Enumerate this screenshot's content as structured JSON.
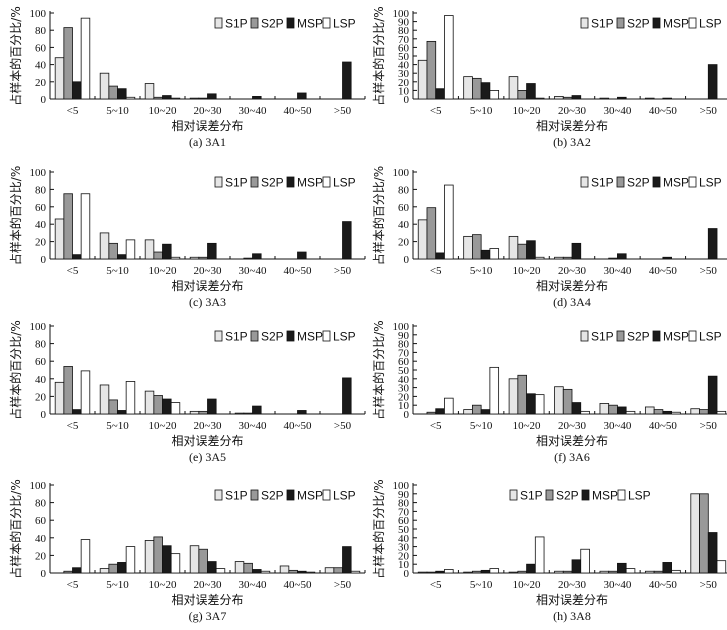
{
  "chart_data": [
    {
      "type": "bar",
      "caption": "(a) 3A1",
      "ylabel": "占样本的百分比/%",
      "xlabel": "相对误差分布",
      "categories": [
        "<5",
        "5~10",
        "10~20",
        "20~30",
        "30~40",
        "40~50",
        ">50"
      ],
      "yticks": [
        0,
        20,
        40,
        60,
        80,
        100
      ],
      "ylim": [
        0,
        100
      ],
      "legend_position": "top-right",
      "series": [
        {
          "name": "S1P",
          "color": "#e6e6e6",
          "values": [
            48,
            30,
            18,
            1,
            0,
            0,
            0
          ]
        },
        {
          "name": "S2P",
          "color": "#999999",
          "values": [
            83,
            15,
            2,
            1,
            0,
            0,
            0
          ]
        },
        {
          "name": "MSP",
          "color": "#1a1a1a",
          "values": [
            20,
            12,
            4,
            6,
            3,
            7,
            43
          ]
        },
        {
          "name": "LSP",
          "color": "#ffffff",
          "values": [
            94,
            2,
            1,
            0,
            0,
            0,
            0
          ]
        }
      ]
    },
    {
      "type": "bar",
      "caption": "(b) 3A2",
      "ylabel": "占样本的百分比/%",
      "xlabel": "相对误差分布",
      "categories": [
        "<5",
        "5~10",
        "10~20",
        "20~30",
        "30~40",
        "40~50",
        ">50"
      ],
      "yticks": [
        0,
        10,
        20,
        30,
        40,
        50,
        60,
        70,
        80,
        90,
        100
      ],
      "ylim": [
        0,
        100
      ],
      "legend_position": "top-right",
      "series": [
        {
          "name": "S1P",
          "color": "#e6e6e6",
          "values": [
            45,
            26,
            26,
            3,
            1,
            1,
            0
          ]
        },
        {
          "name": "S2P",
          "color": "#999999",
          "values": [
            67,
            24,
            10,
            2,
            0,
            0,
            0
          ]
        },
        {
          "name": "MSP",
          "color": "#1a1a1a",
          "values": [
            12,
            19,
            18,
            4,
            2,
            1,
            40
          ]
        },
        {
          "name": "LSP",
          "color": "#ffffff",
          "values": [
            97,
            10,
            1,
            0,
            0,
            0,
            0
          ]
        }
      ]
    },
    {
      "type": "bar",
      "caption": "(c) 3A3",
      "ylabel": "占样本的百分比/%",
      "xlabel": "相对误差分布",
      "categories": [
        "<5",
        "5~10",
        "10~20",
        "20~30",
        "30~40",
        "40~50",
        ">50"
      ],
      "yticks": [
        0,
        20,
        40,
        60,
        80,
        100
      ],
      "ylim": [
        0,
        100
      ],
      "legend_position": "top-right",
      "series": [
        {
          "name": "S1P",
          "color": "#e6e6e6",
          "values": [
            46,
            30,
            22,
            2,
            0,
            0,
            0
          ]
        },
        {
          "name": "S2P",
          "color": "#999999",
          "values": [
            75,
            18,
            8,
            2,
            1,
            0,
            0
          ]
        },
        {
          "name": "MSP",
          "color": "#1a1a1a",
          "values": [
            5,
            5,
            17,
            18,
            6,
            8,
            43
          ]
        },
        {
          "name": "LSP",
          "color": "#ffffff",
          "values": [
            75,
            22,
            2,
            0,
            0,
            0,
            0
          ]
        }
      ]
    },
    {
      "type": "bar",
      "caption": "(d) 3A4",
      "ylabel": "占样本的百分比/%",
      "xlabel": "相对误差分布",
      "categories": [
        "<5",
        "5~10",
        "10~20",
        "20~30",
        "30~40",
        "40~50",
        ">50"
      ],
      "yticks": [
        0,
        20,
        40,
        60,
        80,
        100
      ],
      "ylim": [
        0,
        100
      ],
      "legend_position": "top-right",
      "series": [
        {
          "name": "S1P",
          "color": "#e6e6e6",
          "values": [
            45,
            26,
            26,
            2,
            0,
            0,
            0
          ]
        },
        {
          "name": "S2P",
          "color": "#999999",
          "values": [
            59,
            28,
            17,
            2,
            1,
            0,
            0
          ]
        },
        {
          "name": "MSP",
          "color": "#1a1a1a",
          "values": [
            7,
            10,
            21,
            18,
            6,
            2,
            35
          ]
        },
        {
          "name": "LSP",
          "color": "#ffffff",
          "values": [
            85,
            12,
            2,
            0,
            0,
            0,
            0
          ]
        }
      ]
    },
    {
      "type": "bar",
      "caption": "(e) 3A5",
      "ylabel": "占样本的百分比/%",
      "xlabel": "相对误差分布",
      "categories": [
        "<5",
        "5~10",
        "10~20",
        "20~30",
        "30~40",
        "40~50",
        ">50"
      ],
      "yticks": [
        0,
        20,
        40,
        60,
        80,
        100
      ],
      "ylim": [
        0,
        100
      ],
      "legend_position": "top-right",
      "series": [
        {
          "name": "S1P",
          "color": "#e6e6e6",
          "values": [
            36,
            33,
            26,
            3,
            1,
            0,
            0
          ]
        },
        {
          "name": "S2P",
          "color": "#999999",
          "values": [
            54,
            16,
            21,
            3,
            1,
            0,
            0
          ]
        },
        {
          "name": "MSP",
          "color": "#1a1a1a",
          "values": [
            5,
            4,
            17,
            17,
            9,
            4,
            41
          ]
        },
        {
          "name": "LSP",
          "color": "#ffffff",
          "values": [
            49,
            37,
            13,
            0,
            0,
            0,
            0
          ]
        }
      ]
    },
    {
      "type": "bar",
      "caption": "(f) 3A6",
      "ylabel": "占样本的百分比/%",
      "xlabel": "相对误差分布",
      "categories": [
        "<5",
        "5~10",
        "10~20",
        "20~30",
        "30~40",
        "40~50",
        ">50"
      ],
      "yticks": [
        0,
        10,
        20,
        30,
        40,
        50,
        60,
        70,
        80,
        90,
        100
      ],
      "ylim": [
        0,
        100
      ],
      "legend_position": "top-right",
      "series": [
        {
          "name": "S1P",
          "color": "#e6e6e6",
          "values": [
            0,
            5,
            40,
            31,
            12,
            8,
            6
          ]
        },
        {
          "name": "S2P",
          "color": "#999999",
          "values": [
            2,
            10,
            44,
            28,
            10,
            5,
            5
          ]
        },
        {
          "name": "MSP",
          "color": "#1a1a1a",
          "values": [
            6,
            5,
            23,
            13,
            8,
            3,
            43
          ]
        },
        {
          "name": "LSP",
          "color": "#ffffff",
          "values": [
            18,
            53,
            22,
            3,
            3,
            2,
            3
          ]
        }
      ]
    },
    {
      "type": "bar",
      "caption": "(g) 3A7",
      "ylabel": "占样本的百分比/%",
      "xlabel": "相对误差分布",
      "categories": [
        "<5",
        "5~10",
        "10~20",
        "20~30",
        "30~40",
        "40~50",
        ">50"
      ],
      "yticks": [
        0,
        20,
        40,
        60,
        80,
        100
      ],
      "ylim": [
        0,
        100
      ],
      "legend_position": "top-right",
      "series": [
        {
          "name": "S1P",
          "color": "#e6e6e6",
          "values": [
            0,
            5,
            37,
            31,
            13,
            8,
            6
          ]
        },
        {
          "name": "S2P",
          "color": "#999999",
          "values": [
            2,
            10,
            41,
            27,
            11,
            3,
            6
          ]
        },
        {
          "name": "MSP",
          "color": "#1a1a1a",
          "values": [
            6,
            12,
            31,
            13,
            4,
            2,
            30
          ]
        },
        {
          "name": "LSP",
          "color": "#ffffff",
          "values": [
            38,
            30,
            22,
            5,
            2,
            1,
            2
          ]
        }
      ]
    },
    {
      "type": "bar",
      "caption": "(h) 3A8",
      "ylabel": "占样本的百分比/%",
      "xlabel": "相对误差分布",
      "categories": [
        "<5",
        "5~10",
        "10~20",
        "20~30",
        "30~40",
        "40~50",
        ">50"
      ],
      "yticks": [
        0,
        10,
        20,
        30,
        40,
        50,
        60,
        70,
        80,
        90,
        100
      ],
      "ylim": [
        0,
        100
      ],
      "legend_position": "top-center",
      "series": [
        {
          "name": "S1P",
          "color": "#e6e6e6",
          "values": [
            1,
            1,
            1,
            2,
            2,
            2,
            90
          ]
        },
        {
          "name": "S2P",
          "color": "#999999",
          "values": [
            1,
            2,
            2,
            2,
            2,
            2,
            90
          ]
        },
        {
          "name": "MSP",
          "color": "#1a1a1a",
          "values": [
            2,
            3,
            10,
            15,
            11,
            12,
            46
          ]
        },
        {
          "name": "LSP",
          "color": "#ffffff",
          "values": [
            4,
            5,
            41,
            27,
            5,
            3,
            14
          ]
        }
      ]
    }
  ]
}
